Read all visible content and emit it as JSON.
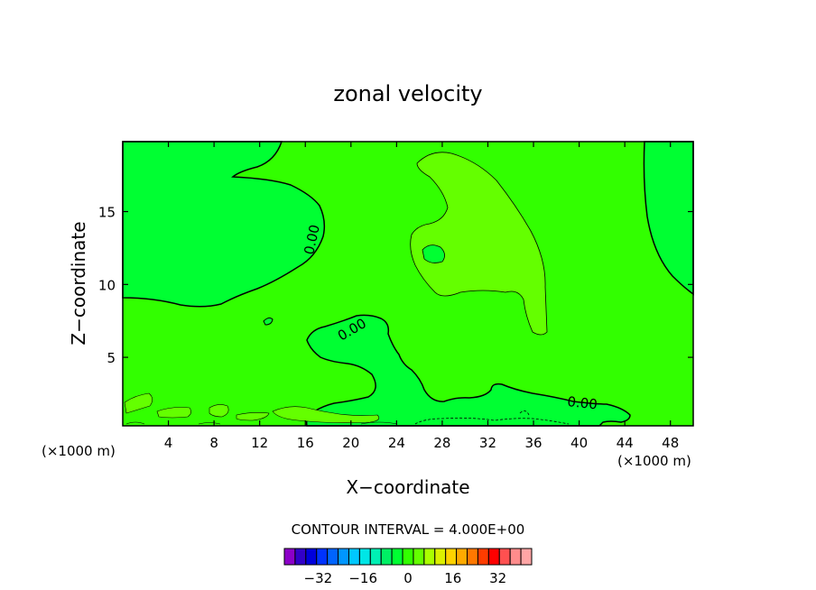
{
  "chart_data": {
    "type": "heatmap",
    "title": "zonal velocity",
    "xlabel": "X−coordinate",
    "ylabel": "Z−coordinate",
    "x_unit_left": "(×1000 m)",
    "x_unit_right": "(×1000 m)",
    "xlim": [
      0,
      50
    ],
    "ylim": [
      0.3,
      19.8
    ],
    "x_ticks": [
      4,
      8,
      12,
      16,
      20,
      24,
      28,
      32,
      36,
      40,
      44,
      48
    ],
    "y_ticks": [
      5,
      10,
      15
    ],
    "contour_interval_text": "CONTOUR INTERVAL = 4.000E+00",
    "contour_labels": [
      "0.00",
      "0.00",
      "0.00"
    ],
    "colorbar": {
      "tick_labels": [
        "−32",
        "−16",
        "0",
        "16",
        "32"
      ],
      "tick_values": [
        -32,
        -16,
        0,
        16,
        32
      ],
      "range": [
        -44,
        44
      ],
      "colors": [
        "#8c00c8",
        "#3200c8",
        "#0000dc",
        "#0032ff",
        "#0064ff",
        "#0096ff",
        "#00c8ff",
        "#00e6e6",
        "#00f0b4",
        "#00f064",
        "#00ff32",
        "#32ff00",
        "#64ff00",
        "#aaff00",
        "#dcf000",
        "#ffd200",
        "#ffaa00",
        "#ff7800",
        "#ff3c00",
        "#ff0000",
        "#ff5050",
        "#ff8c8c",
        "#ffa5a5"
      ]
    },
    "regions": [
      {
        "name": "background",
        "level": "0 to 4",
        "color": "#32ff00"
      },
      {
        "name": "upper-left-negative",
        "level": "-4 to 0",
        "color": "#00ff32"
      },
      {
        "name": "lower-middle-negative",
        "level": "-4 to 0",
        "color": "#00ff32"
      },
      {
        "name": "right-edge-negative",
        "level": "-4 to 0",
        "color": "#00ff32"
      },
      {
        "name": "upper-middle-positive",
        "level": "4 to 8",
        "color": "#64ff00"
      }
    ]
  }
}
